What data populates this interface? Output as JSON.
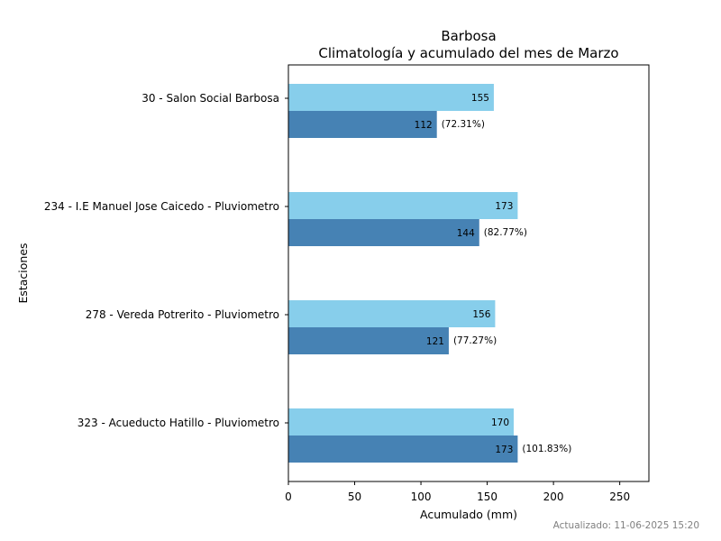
{
  "chart_data": {
    "type": "bar",
    "orientation": "horizontal",
    "title": "Barbosa",
    "subtitle": "Climatología y acumulado del mes de Marzo",
    "xlabel": "Acumulado (mm)",
    "ylabel": "Estaciones",
    "xlim": [
      0,
      272
    ],
    "xticks": [
      0,
      50,
      100,
      150,
      200,
      250
    ],
    "grid": false,
    "categories": [
      "30 - Salon Social Barbosa",
      "234 - I.E Manuel Jose Caicedo - Pluviometro",
      "278 - Vereda Potrerito - Pluviometro",
      "323 - Acueducto Hatillo - Pluviometro"
    ],
    "series": [
      {
        "values": [
          155,
          173,
          156,
          170
        ],
        "labels": [
          "155",
          "173",
          "156",
          "170"
        ],
        "color": "#87ceeb"
      },
      {
        "values": [
          112,
          144,
          121,
          173
        ],
        "labels": [
          "112",
          "144",
          "121",
          "173"
        ],
        "percent_labels": [
          "(72.31%)",
          "(82.77%)",
          "(77.27%)",
          "(101.83%)"
        ],
        "color": "#4682b4"
      }
    ]
  },
  "footer": "Actualizado: 11-06-2025 15:20"
}
